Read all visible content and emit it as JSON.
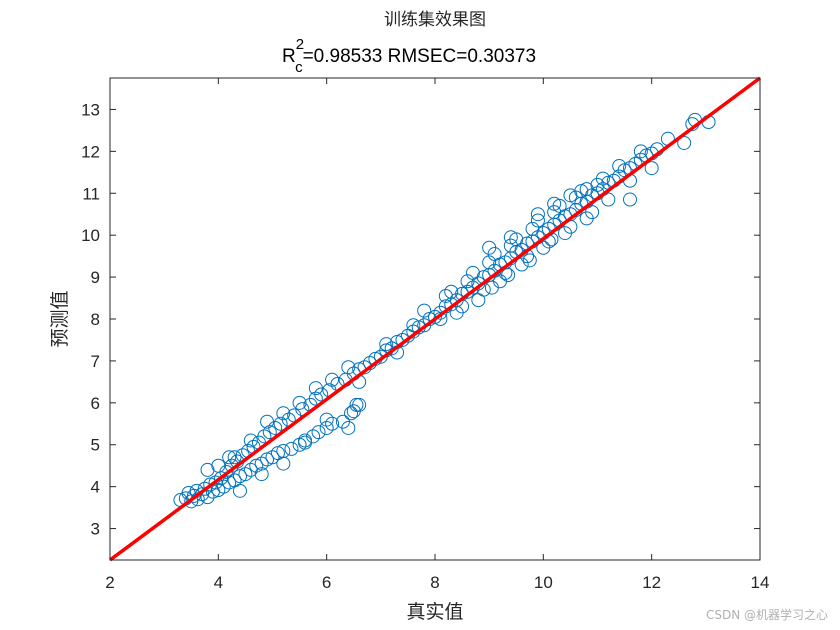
{
  "chart_data": {
    "type": "scatter",
    "title": "训练集效果图",
    "subtitle": {
      "r_prefix": "R",
      "r_superscript": "2",
      "r_subscript": "c",
      "rest": "=0.98533  RMSEC=0.30373"
    },
    "xlabel": "真实值",
    "ylabel": "预测值",
    "xlim": [
      2,
      14
    ],
    "ylim": [
      2.25,
      13.75
    ],
    "xticks": [
      2,
      4,
      6,
      8,
      10,
      12,
      14
    ],
    "yticks": [
      3,
      4,
      5,
      6,
      7,
      8,
      9,
      10,
      11,
      12,
      13
    ],
    "grid": false,
    "marker": "circle-open",
    "series": [
      {
        "color": "#0072BD",
        "points": [
          [
            3.3,
            3.68
          ],
          [
            3.4,
            3.72
          ],
          [
            3.45,
            3.85
          ],
          [
            3.5,
            3.65
          ],
          [
            3.55,
            3.78
          ],
          [
            3.6,
            3.9
          ],
          [
            3.62,
            3.7
          ],
          [
            3.7,
            3.82
          ],
          [
            3.75,
            3.95
          ],
          [
            3.8,
            3.75
          ],
          [
            3.85,
            4.05
          ],
          [
            3.9,
            3.88
          ],
          [
            3.95,
            4.1
          ],
          [
            4.0,
            3.92
          ],
          [
            4.05,
            4.2
          ],
          [
            4.1,
            4.0
          ],
          [
            4.15,
            4.35
          ],
          [
            4.2,
            4.1
          ],
          [
            4.25,
            4.5
          ],
          [
            4.3,
            4.15
          ],
          [
            4.35,
            4.6
          ],
          [
            4.4,
            4.25
          ],
          [
            4.45,
            4.75
          ],
          [
            4.5,
            4.3
          ],
          [
            4.55,
            4.85
          ],
          [
            4.6,
            4.4
          ],
          [
            4.65,
            4.95
          ],
          [
            4.7,
            4.5
          ],
          [
            4.75,
            5.05
          ],
          [
            4.8,
            4.55
          ],
          [
            4.85,
            5.2
          ],
          [
            4.9,
            4.65
          ],
          [
            4.95,
            5.3
          ],
          [
            5.0,
            4.7
          ],
          [
            5.05,
            5.4
          ],
          [
            5.1,
            4.8
          ],
          [
            5.15,
            5.5
          ],
          [
            5.2,
            4.85
          ],
          [
            5.3,
            5.6
          ],
          [
            5.35,
            4.9
          ],
          [
            5.4,
            5.7
          ],
          [
            5.5,
            5.0
          ],
          [
            5.55,
            5.85
          ],
          [
            5.6,
            5.1
          ],
          [
            5.7,
            5.95
          ],
          [
            5.75,
            5.2
          ],
          [
            5.8,
            6.1
          ],
          [
            5.85,
            5.3
          ],
          [
            5.9,
            6.2
          ],
          [
            6.0,
            5.4
          ],
          [
            6.05,
            6.3
          ],
          [
            6.1,
            5.5
          ],
          [
            6.2,
            6.45
          ],
          [
            6.3,
            5.55
          ],
          [
            6.35,
            6.55
          ],
          [
            6.45,
            5.75
          ],
          [
            6.5,
            6.7
          ],
          [
            6.55,
            5.95
          ],
          [
            6.6,
            6.8
          ],
          [
            6.7,
            6.85
          ],
          [
            6.8,
            6.95
          ],
          [
            6.9,
            7.05
          ],
          [
            7.0,
            7.1
          ],
          [
            7.1,
            7.25
          ],
          [
            7.2,
            7.3
          ],
          [
            7.3,
            7.45
          ],
          [
            7.4,
            7.5
          ],
          [
            7.5,
            7.6
          ],
          [
            7.6,
            7.7
          ],
          [
            7.7,
            7.8
          ],
          [
            7.8,
            7.85
          ],
          [
            7.9,
            8.0
          ],
          [
            8.0,
            8.05
          ],
          [
            8.1,
            8.15
          ],
          [
            8.2,
            8.3
          ],
          [
            8.3,
            8.35
          ],
          [
            8.4,
            8.45
          ],
          [
            8.5,
            8.6
          ],
          [
            8.6,
            8.65
          ],
          [
            8.7,
            8.75
          ],
          [
            8.8,
            8.85
          ],
          [
            8.9,
            9.0
          ],
          [
            9.0,
            9.05
          ],
          [
            9.1,
            9.15
          ],
          [
            9.2,
            9.3
          ],
          [
            9.3,
            9.35
          ],
          [
            9.4,
            9.45
          ],
          [
            9.5,
            9.6
          ],
          [
            9.6,
            9.65
          ],
          [
            9.7,
            9.8
          ],
          [
            9.8,
            9.85
          ],
          [
            9.9,
            9.95
          ],
          [
            10.0,
            10.05
          ],
          [
            10.1,
            10.15
          ],
          [
            10.2,
            10.25
          ],
          [
            10.3,
            10.35
          ],
          [
            10.4,
            10.45
          ],
          [
            10.5,
            10.5
          ],
          [
            10.6,
            10.6
          ],
          [
            10.7,
            10.75
          ],
          [
            10.8,
            10.8
          ],
          [
            10.9,
            10.95
          ],
          [
            11.0,
            11.0
          ],
          [
            11.1,
            11.1
          ],
          [
            11.2,
            11.25
          ],
          [
            11.3,
            11.3
          ],
          [
            11.4,
            11.4
          ],
          [
            11.5,
            11.55
          ],
          [
            11.6,
            11.6
          ],
          [
            11.7,
            11.7
          ],
          [
            11.8,
            11.8
          ],
          [
            11.9,
            11.9
          ],
          [
            12.0,
            11.95
          ],
          [
            12.1,
            12.05
          ],
          [
            12.6,
            12.2
          ],
          [
            12.75,
            12.65
          ],
          [
            12.8,
            12.75
          ],
          [
            13.05,
            12.7
          ],
          [
            12.3,
            12.3
          ],
          [
            11.6,
            10.85
          ],
          [
            7.1,
            7.4
          ],
          [
            7.3,
            7.2
          ],
          [
            7.6,
            7.85
          ],
          [
            7.8,
            8.2
          ],
          [
            8.1,
            8.0
          ],
          [
            8.3,
            8.65
          ],
          [
            8.5,
            8.3
          ],
          [
            8.7,
            9.1
          ],
          [
            8.9,
            8.7
          ],
          [
            9.1,
            9.55
          ],
          [
            9.3,
            9.1
          ],
          [
            9.5,
            9.9
          ],
          [
            9.7,
            9.5
          ],
          [
            9.9,
            10.35
          ],
          [
            10.1,
            9.85
          ],
          [
            10.3,
            10.7
          ],
          [
            10.5,
            10.2
          ],
          [
            10.7,
            11.05
          ],
          [
            10.9,
            10.55
          ],
          [
            11.1,
            11.35
          ],
          [
            4.3,
            4.7
          ],
          [
            4.6,
            5.1
          ],
          [
            4.9,
            5.55
          ],
          [
            5.2,
            5.75
          ],
          [
            5.5,
            6.0
          ],
          [
            5.8,
            6.35
          ],
          [
            6.1,
            6.55
          ],
          [
            6.4,
            6.85
          ],
          [
            6.6,
            6.5
          ],
          [
            6.6,
            5.95
          ],
          [
            3.8,
            4.4
          ],
          [
            4.0,
            4.5
          ],
          [
            4.2,
            4.7
          ],
          [
            4.4,
            3.9
          ],
          [
            4.8,
            4.3
          ],
          [
            5.2,
            4.55
          ],
          [
            5.6,
            5.05
          ],
          [
            6.0,
            5.6
          ],
          [
            6.4,
            5.4
          ],
          [
            6.5,
            5.8
          ],
          [
            8.2,
            8.55
          ],
          [
            8.4,
            8.15
          ],
          [
            8.6,
            8.9
          ],
          [
            8.8,
            8.45
          ],
          [
            9.0,
            9.35
          ],
          [
            9.2,
            8.9
          ],
          [
            9.4,
            9.75
          ],
          [
            9.6,
            9.3
          ],
          [
            9.8,
            10.15
          ],
          [
            10.0,
            9.7
          ],
          [
            10.2,
            10.55
          ],
          [
            10.4,
            10.05
          ],
          [
            10.6,
            10.9
          ],
          [
            10.8,
            10.4
          ],
          [
            11.0,
            11.2
          ],
          [
            11.2,
            10.85
          ],
          [
            11.4,
            11.65
          ],
          [
            11.6,
            11.3
          ],
          [
            11.8,
            12.0
          ],
          [
            12.0,
            11.6
          ],
          [
            9.0,
            9.7
          ],
          [
            9.4,
            9.95
          ],
          [
            9.9,
            10.5
          ],
          [
            10.2,
            10.75
          ],
          [
            10.5,
            10.95
          ],
          [
            10.8,
            11.1
          ],
          [
            9.05,
            8.75
          ],
          [
            9.35,
            9.05
          ],
          [
            9.75,
            9.4
          ],
          [
            10.15,
            9.9
          ]
        ]
      }
    ],
    "reference_line": {
      "from": [
        2,
        2.25
      ],
      "to": [
        14,
        13.75
      ],
      "color": "#FF0000"
    },
    "watermark": "CSDN @机器学习之心"
  }
}
